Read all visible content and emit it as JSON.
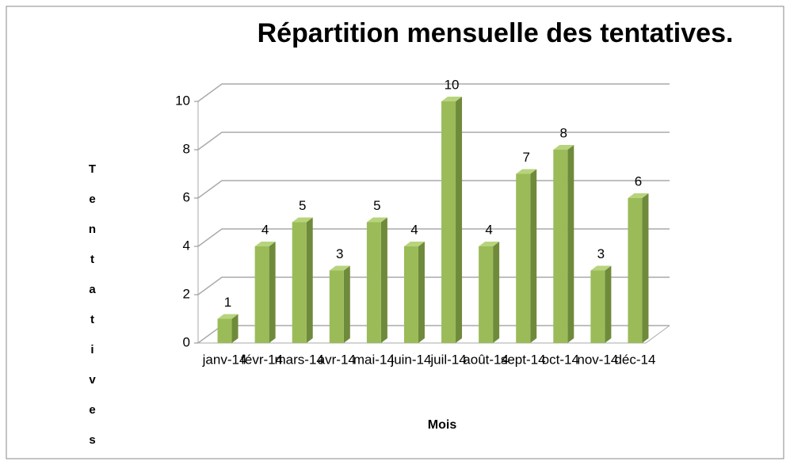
{
  "chart_data": {
    "type": "bar3d",
    "title": "Répartition mensuelle des tentatives.",
    "categories": [
      "janv-14",
      "févr-14",
      "mars-14",
      "avr-14",
      "mai-14",
      "juin-14",
      "juil-14",
      "août-14",
      "sept-14",
      "oct-14",
      "nov-14",
      "déc-14"
    ],
    "values": [
      1,
      4,
      5,
      3,
      5,
      4,
      10,
      4,
      7,
      8,
      3,
      6
    ],
    "color": "#9bbb59",
    "ylim": [
      0,
      10
    ],
    "yticks": [
      0,
      2,
      4,
      6,
      8,
      10
    ],
    "grid": true,
    "xlabel": "Mois",
    "ylabel": "Tentatives"
  }
}
